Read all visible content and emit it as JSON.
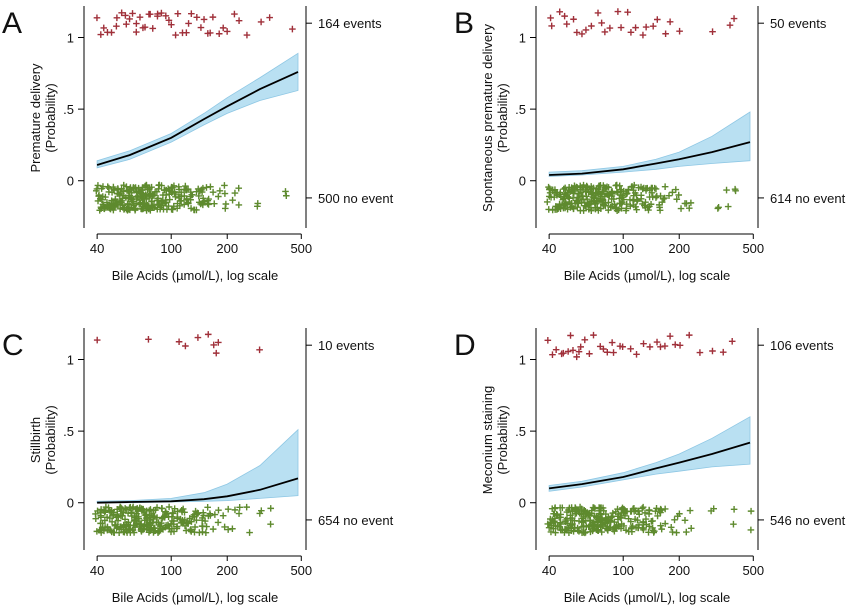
{
  "colors": {
    "event": "#a0303a",
    "no_event": "#5e8a2e",
    "ci_band": "#b9e0f2",
    "ci_edge": "#8ec7e4",
    "fit": "#000000"
  },
  "chart_data": [
    {
      "type": "scatter",
      "panel_letter": "A",
      "ylabel_lines": [
        "Premature delivery",
        "(Probability)"
      ],
      "xlabel": "Bile Acids (µmol/L), log scale",
      "xscale": "log",
      "xlim": [
        34,
        530
      ],
      "ylim": [
        -0.33,
        1.22
      ],
      "xticks": [
        40,
        100,
        200,
        500
      ],
      "xtick_labels": [
        "40",
        "100",
        "200",
        "500"
      ],
      "yticks": [
        0,
        0.5,
        1
      ],
      "ytick_labels": [
        "0",
        ".5",
        "1"
      ],
      "fit_line": {
        "x": [
          40,
          60,
          100,
          150,
          200,
          300,
          480
        ],
        "y": [
          0.11,
          0.18,
          0.3,
          0.43,
          0.52,
          0.64,
          0.76
        ]
      },
      "ci_upper": [
        0.14,
        0.21,
        0.33,
        0.47,
        0.58,
        0.72,
        0.89
      ],
      "ci_lower": [
        0.09,
        0.15,
        0.27,
        0.39,
        0.47,
        0.56,
        0.63
      ],
      "events_label": "164 events",
      "no_events_label": "500 no event",
      "event_points_x": [
        40,
        42,
        44,
        46,
        48,
        50,
        52,
        54,
        56,
        58,
        60,
        62,
        64,
        66,
        68,
        70,
        72,
        75,
        78,
        80,
        83,
        86,
        90,
        94,
        98,
        102,
        106,
        110,
        115,
        120,
        125,
        130,
        136,
        142,
        148,
        155,
        162,
        170,
        180,
        190,
        200,
        215,
        230,
        260,
        300,
        340,
        440
      ],
      "no_event_points_x": [
        40,
        41,
        42,
        43,
        44,
        45,
        46,
        47,
        48,
        49,
        50,
        51,
        52,
        53,
        54,
        55,
        56,
        57,
        58,
        59,
        60,
        61,
        62,
        63,
        64,
        65,
        66,
        67,
        68,
        69,
        70,
        71,
        72,
        73,
        74,
        75,
        76,
        77,
        78,
        79,
        80,
        82,
        84,
        86,
        88,
        90,
        92,
        94,
        96,
        98,
        100,
        103,
        106,
        109,
        112,
        115,
        118,
        122,
        126,
        130,
        135,
        140,
        145,
        150,
        156,
        162,
        170,
        180,
        190,
        200,
        215,
        230,
        290,
        420
      ]
    },
    {
      "type": "scatter",
      "panel_letter": "B",
      "ylabel_lines": [
        "Spontaneous premature delivery",
        "(Probability)"
      ],
      "xlabel": "Bile Acids (µmol/L), log scale",
      "xscale": "log",
      "xlim": [
        34,
        530
      ],
      "ylim": [
        -0.33,
        1.22
      ],
      "xticks": [
        40,
        100,
        200,
        500
      ],
      "xtick_labels": [
        "40",
        "100",
        "200",
        "500"
      ],
      "yticks": [
        0,
        0.5,
        1
      ],
      "ytick_labels": [
        "0",
        ".5",
        "1"
      ],
      "fit_line": {
        "x": [
          40,
          60,
          100,
          150,
          200,
          300,
          480
        ],
        "y": [
          0.04,
          0.05,
          0.08,
          0.12,
          0.15,
          0.2,
          0.27
        ]
      },
      "ci_upper": [
        0.06,
        0.07,
        0.1,
        0.15,
        0.2,
        0.31,
        0.48
      ],
      "ci_lower": [
        0.03,
        0.04,
        0.06,
        0.08,
        0.1,
        0.12,
        0.14
      ],
      "events_label": "50 events",
      "no_events_label": "614 no event",
      "event_points_x": [
        40,
        42,
        45,
        48,
        50,
        54,
        57,
        60,
        64,
        68,
        72,
        76,
        80,
        86,
        92,
        98,
        104,
        110,
        118,
        126,
        135,
        145,
        155,
        166,
        180,
        200,
        300,
        380,
        400
      ],
      "no_event_points_x": [
        40,
        41,
        42,
        43,
        44,
        45,
        46,
        47,
        48,
        49,
        50,
        51,
        52,
        53,
        54,
        55,
        56,
        57,
        58,
        59,
        60,
        61,
        62,
        63,
        64,
        65,
        66,
        67,
        68,
        69,
        70,
        71,
        72,
        73,
        74,
        75,
        76,
        77,
        78,
        79,
        80,
        82,
        84,
        86,
        88,
        90,
        92,
        94,
        96,
        98,
        100,
        103,
        106,
        109,
        112,
        115,
        118,
        122,
        126,
        130,
        135,
        140,
        145,
        150,
        156,
        162,
        170,
        180,
        190,
        200,
        215,
        230,
        320,
        360,
        400
      ]
    },
    {
      "type": "scatter",
      "panel_letter": "C",
      "ylabel_lines": [
        "Stillbirth",
        "(Probability)"
      ],
      "xlabel": "Bile Acids (µmol/L), log scale",
      "xscale": "log",
      "xlim": [
        34,
        530
      ],
      "ylim": [
        -0.33,
        1.22
      ],
      "xticks": [
        40,
        100,
        200,
        500
      ],
      "xtick_labels": [
        "40",
        "100",
        "200",
        "500"
      ],
      "yticks": [
        0,
        0.5,
        1
      ],
      "ytick_labels": [
        "0",
        ".5",
        "1"
      ],
      "fit_line": {
        "x": [
          40,
          60,
          100,
          150,
          200,
          300,
          480
        ],
        "y": [
          0.0,
          0.005,
          0.01,
          0.025,
          0.045,
          0.09,
          0.17
        ]
      },
      "ci_upper": [
        0.01,
        0.015,
        0.03,
        0.07,
        0.13,
        0.26,
        0.51
      ],
      "ci_lower": [
        0.0,
        0.0,
        0.005,
        0.01,
        0.015,
        0.03,
        0.05
      ],
      "events_label": "10 events",
      "no_events_label": "654 no event",
      "event_points_x": [
        40,
        75,
        110,
        120,
        140,
        160,
        170,
        175,
        180,
        300
      ],
      "no_event_points_x": [
        40,
        41,
        42,
        43,
        44,
        45,
        46,
        47,
        48,
        49,
        50,
        51,
        52,
        53,
        54,
        55,
        56,
        57,
        58,
        59,
        60,
        61,
        62,
        63,
        64,
        65,
        66,
        67,
        68,
        69,
        70,
        71,
        72,
        73,
        74,
        75,
        76,
        77,
        78,
        79,
        80,
        82,
        84,
        86,
        88,
        90,
        92,
        94,
        96,
        98,
        100,
        103,
        106,
        109,
        112,
        115,
        118,
        122,
        126,
        130,
        135,
        140,
        145,
        150,
        156,
        162,
        170,
        180,
        190,
        200,
        215,
        230,
        260,
        300,
        340
      ]
    },
    {
      "type": "scatter",
      "panel_letter": "D",
      "ylabel_lines": [
        "Meconium staining",
        "(Probability)"
      ],
      "xlabel": "Bile Acids (µmol/L), log scale",
      "xscale": "log",
      "xlim": [
        34,
        530
      ],
      "ylim": [
        -0.33,
        1.22
      ],
      "xticks": [
        40,
        100,
        200,
        500
      ],
      "xtick_labels": [
        "40",
        "100",
        "200",
        "500"
      ],
      "yticks": [
        0,
        0.5,
        1
      ],
      "ytick_labels": [
        "0",
        ".5",
        "1"
      ],
      "fit_line": {
        "x": [
          40,
          60,
          100,
          150,
          200,
          300,
          480
        ],
        "y": [
          0.1,
          0.13,
          0.18,
          0.24,
          0.28,
          0.34,
          0.42
        ]
      },
      "ci_upper": [
        0.12,
        0.15,
        0.21,
        0.28,
        0.34,
        0.45,
        0.6
      ],
      "ci_lower": [
        0.08,
        0.11,
        0.16,
        0.2,
        0.22,
        0.25,
        0.27
      ],
      "events_label": "106 events",
      "no_events_label": "546 no event",
      "event_points_x": [
        40,
        42,
        44,
        46,
        48,
        50,
        52,
        54,
        56,
        58,
        60,
        63,
        66,
        70,
        74,
        78,
        82,
        86,
        90,
        95,
        100,
        110,
        120,
        130,
        140,
        150,
        160,
        170,
        180,
        190,
        200,
        230,
        260,
        300,
        350,
        390
      ],
      "no_event_points_x": [
        40,
        41,
        42,
        43,
        44,
        45,
        46,
        47,
        48,
        49,
        50,
        51,
        52,
        53,
        54,
        55,
        56,
        57,
        58,
        59,
        60,
        61,
        62,
        63,
        64,
        65,
        66,
        67,
        68,
        69,
        70,
        71,
        72,
        73,
        74,
        75,
        76,
        77,
        78,
        79,
        80,
        82,
        84,
        86,
        88,
        90,
        92,
        94,
        96,
        98,
        100,
        103,
        106,
        109,
        112,
        115,
        118,
        122,
        126,
        130,
        135,
        140,
        145,
        150,
        156,
        162,
        170,
        180,
        190,
        200,
        215,
        230,
        300,
        400,
        480
      ]
    }
  ]
}
